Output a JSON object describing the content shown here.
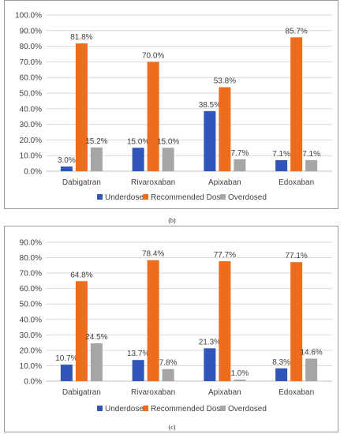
{
  "colors": {
    "underdosed": "#2f55b8",
    "recommended": "#ed6d1f",
    "overdosed": "#a6a6a6",
    "grid": "#d9d9d9",
    "text": "#404040"
  },
  "chart_data": [
    {
      "type": "bar",
      "categories": [
        "Dabigatran",
        "Rivaroxaban",
        "Apixaban",
        "Edoxaban"
      ],
      "series": [
        {
          "name": "Underdosed",
          "values": [
            3.0,
            15.0,
            38.5,
            7.1
          ]
        },
        {
          "name": "Recommended Dose",
          "values": [
            81.8,
            70.0,
            53.8,
            85.7
          ]
        },
        {
          "name": "Overdosed",
          "values": [
            15.2,
            15.0,
            7.7,
            7.1
          ]
        }
      ],
      "data_labels": [
        [
          "3.0%",
          "15.0%",
          "38.5%",
          "7.1%"
        ],
        [
          "81.8%",
          "70.0%",
          "53.8%",
          "85.7%"
        ],
        [
          "15.2%",
          "15.0%",
          "7.7%",
          "7.1%"
        ]
      ],
      "y_ticks": [
        "0.0%",
        "10.0%",
        "20.0%",
        "30.0%",
        "40.0%",
        "50.0%",
        "60.0%",
        "70.0%",
        "80.0%",
        "90.0%",
        "100.0%"
      ],
      "ylim": [
        0,
        100
      ],
      "grid": true,
      "legend": "bottom",
      "caption": "(b)"
    },
    {
      "type": "bar",
      "categories": [
        "Dabigatran",
        "Rivaroxaban",
        "Apixaban",
        "Edoxaban"
      ],
      "series": [
        {
          "name": "Underdosed",
          "values": [
            10.7,
            13.7,
            21.3,
            8.3
          ]
        },
        {
          "name": "Recommended Dose",
          "values": [
            64.8,
            78.4,
            77.7,
            77.1
          ]
        },
        {
          "name": "Overdosed",
          "values": [
            24.5,
            7.8,
            1.0,
            14.6
          ]
        }
      ],
      "data_labels": [
        [
          "10.7%",
          "13.7%",
          "21.3%",
          "8.3%"
        ],
        [
          "64.8%",
          "78.4%",
          "77.7%",
          "77.1%"
        ],
        [
          "24.5%",
          "7.8%",
          "1.0%",
          "14.6%"
        ]
      ],
      "y_ticks": [
        "0.0%",
        "10.0%",
        "20.0%",
        "30.0%",
        "40.0%",
        "50.0%",
        "60.0%",
        "70.0%",
        "80.0%",
        "90.0%"
      ],
      "ylim": [
        0,
        90
      ],
      "grid": true,
      "legend": "bottom",
      "caption": "(c)"
    }
  ]
}
